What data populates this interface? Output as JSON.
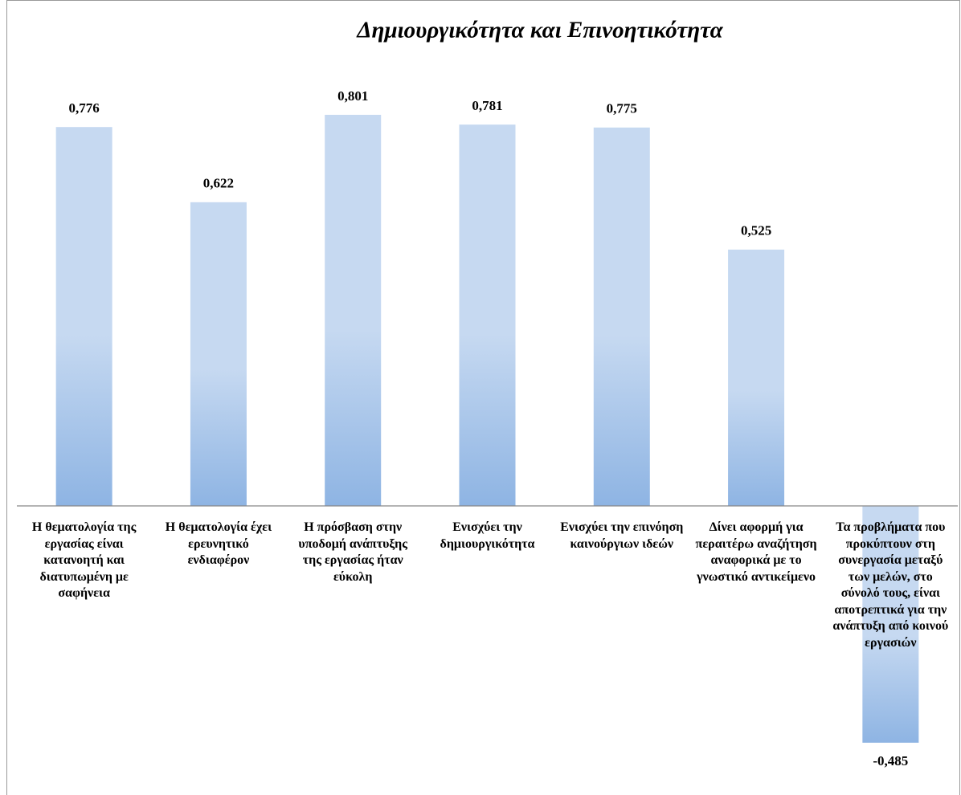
{
  "chart_data": {
    "type": "bar",
    "title": "Δημιουργικότητα και Επινοητικότητα",
    "categories": [
      "Η θεματολογία της εργασίας είναι κατανοητή και διατυπωμένη με σαφήνεια",
      "Η θεματολογία έχει ερευνητικό ενδιαφέρον",
      "Η πρόσβαση στην υποδομή ανάπτυξης της εργασίας ήταν εύκολη",
      "Ενισχύει την δημιουργικότητα",
      "Ενισχύει την επινόηση καινούργιων ιδεών",
      "Δίνει αφορμή για περαιτέρω αναζήτηση αναφορικά με το γνωστικό αντικείμενο",
      "Τα προβλήματα που προκύπτουν στη συνεργασία μεταξύ των μελών, στο σύνολό τους, είναι αποτρεπτικά για την ανάπτυξη από κοινού εργασιών"
    ],
    "values": [
      0.776,
      0.622,
      0.801,
      0.781,
      0.775,
      0.525,
      -0.485
    ],
    "value_labels": [
      "0,776",
      "0,622",
      "0,801",
      "0,781",
      "0,775",
      "0,525",
      "-0,485"
    ],
    "ylim": [
      -0.5,
      1
    ],
    "color": [
      "#c6d9f1",
      "#8eb4e3"
    ]
  }
}
